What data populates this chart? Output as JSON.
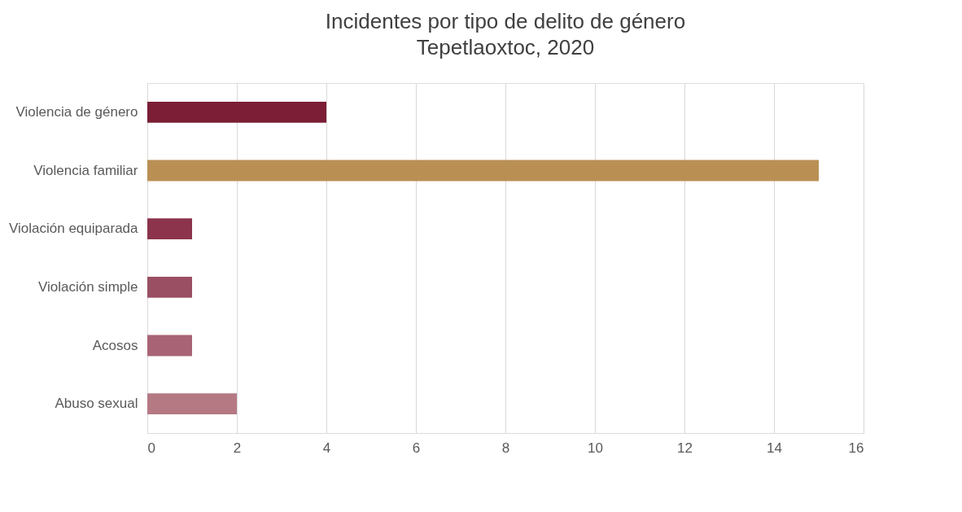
{
  "chart_data": {
    "type": "bar",
    "orientation": "horizontal",
    "title": "Incidentes por tipo de delito de género",
    "subtitle": "Tepetlaoxtoc, 2020",
    "categories": [
      "Violencia de género",
      "Violencia familiar",
      "Violación equiparada",
      "Violación simple",
      "Acosos",
      "Abuso sexual"
    ],
    "values": [
      4,
      15,
      1,
      1,
      1,
      2
    ],
    "colors": [
      "#7b1e36",
      "#b98f54",
      "#8b344c",
      "#9a4f62",
      "#a86474",
      "#b57983"
    ],
    "xlim": [
      0,
      16
    ],
    "xticks": [
      0,
      2,
      4,
      6,
      8,
      10,
      12,
      14,
      16
    ],
    "grid": "x"
  }
}
